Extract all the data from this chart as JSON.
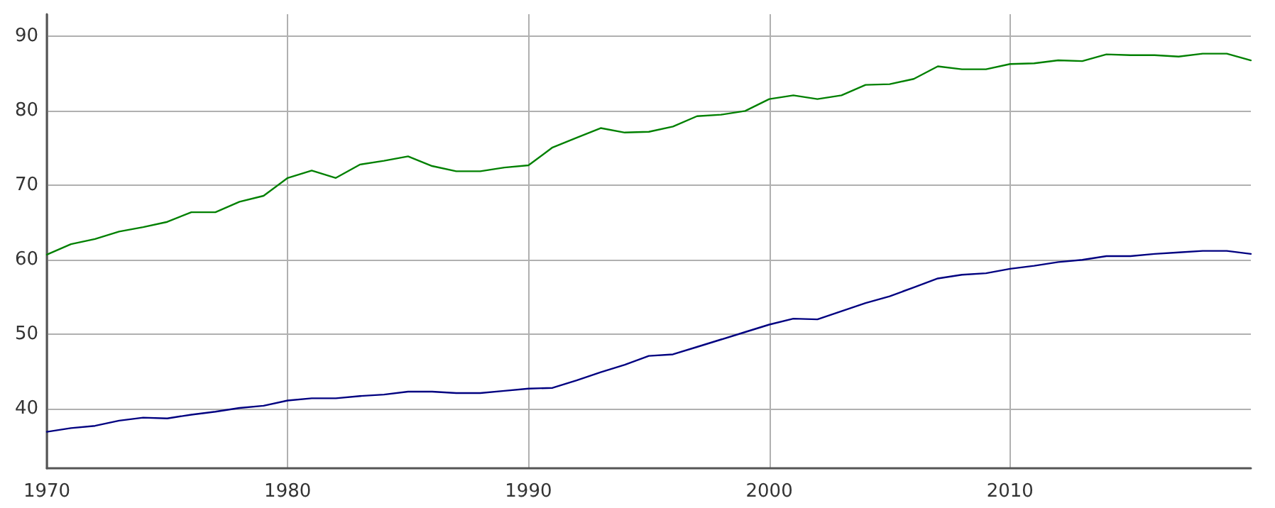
{
  "chart_data": {
    "type": "line",
    "x": [
      1970,
      1971,
      1972,
      1973,
      1974,
      1975,
      1976,
      1977,
      1978,
      1979,
      1980,
      1981,
      1982,
      1983,
      1984,
      1985,
      1986,
      1987,
      1988,
      1989,
      1990,
      1991,
      1992,
      1993,
      1994,
      1995,
      1996,
      1997,
      1998,
      1999,
      2000,
      2001,
      2002,
      2003,
      2004,
      2005,
      2006,
      2007,
      2008,
      2009,
      2010,
      2011,
      2012,
      2013,
      2014,
      2015,
      2016,
      2017,
      2018,
      2019,
      2020
    ],
    "series": [
      {
        "color": "#008000",
        "values": [
          60.7,
          62.1,
          62.8,
          63.8,
          64.4,
          65.1,
          66.4,
          66.4,
          67.8,
          68.6,
          71.0,
          72.0,
          71.0,
          72.8,
          73.3,
          73.9,
          72.6,
          71.9,
          71.9,
          72.4,
          72.7,
          75.1,
          76.4,
          77.7,
          77.1,
          77.2,
          77.9,
          79.3,
          79.5,
          80.0,
          81.6,
          82.1,
          81.6,
          82.1,
          83.5,
          83.6,
          84.3,
          86.0,
          85.6,
          85.6,
          86.3,
          86.4,
          86.8,
          86.7,
          87.6,
          87.5,
          87.5,
          87.3,
          87.7,
          87.7,
          86.8
        ]
      },
      {
        "color": "#000080",
        "values": [
          36.9,
          37.4,
          37.7,
          38.4,
          38.8,
          38.7,
          39.2,
          39.6,
          40.1,
          40.4,
          41.1,
          41.4,
          41.4,
          41.7,
          41.9,
          42.3,
          42.3,
          42.1,
          42.1,
          42.4,
          42.7,
          42.8,
          43.8,
          44.9,
          45.9,
          47.1,
          47.3,
          48.3,
          49.3,
          50.3,
          51.3,
          52.1,
          52.0,
          53.1,
          54.2,
          55.1,
          56.3,
          57.5,
          58.0,
          58.2,
          58.8,
          59.2,
          59.7,
          60.0,
          60.5,
          60.5,
          60.8,
          61.0,
          61.2,
          61.2,
          60.8
        ]
      }
    ],
    "xlim": [
      1970,
      2020
    ],
    "xticks": [
      1970,
      1980,
      1990,
      2000,
      2010
    ],
    "ylim": [
      32,
      93
    ],
    "yticks": [
      40,
      50,
      60,
      70,
      80,
      90
    ],
    "grid": true,
    "marker": "none",
    "line_style": "solid"
  }
}
